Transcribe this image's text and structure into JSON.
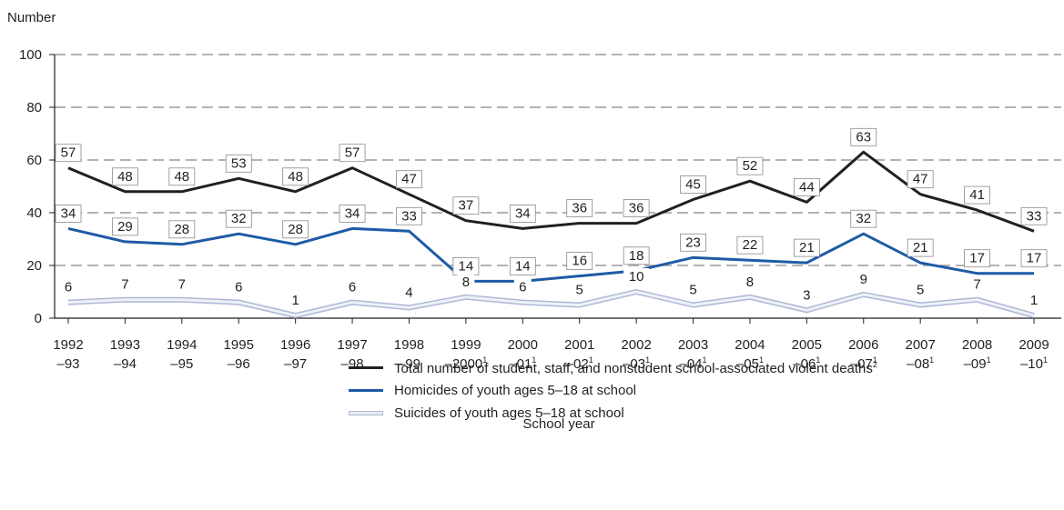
{
  "chart_data": {
    "type": "line",
    "ylabel": "Number",
    "xlabel": "School year",
    "ylim": [
      0,
      100
    ],
    "yticks": [
      0,
      20,
      40,
      60,
      80,
      100
    ],
    "grid": "dashed horizontal",
    "categories": [
      {
        "line1": "1992",
        "line2": "–93",
        "sup": ""
      },
      {
        "line1": "1993",
        "line2": "–94",
        "sup": ""
      },
      {
        "line1": "1994",
        "line2": "–95",
        "sup": ""
      },
      {
        "line1": "1995",
        "line2": "–96",
        "sup": ""
      },
      {
        "line1": "1996",
        "line2": "–97",
        "sup": ""
      },
      {
        "line1": "1997",
        "line2": "–98",
        "sup": ""
      },
      {
        "line1": "1998",
        "line2": "–99",
        "sup": ""
      },
      {
        "line1": "1999",
        "line2": "–2000",
        "sup": "1"
      },
      {
        "line1": "2000",
        "line2": "–01",
        "sup": "1"
      },
      {
        "line1": "2001",
        "line2": "–02",
        "sup": "1"
      },
      {
        "line1": "2002",
        "line2": "–03",
        "sup": "1"
      },
      {
        "line1": "2003",
        "line2": "–04",
        "sup": "1"
      },
      {
        "line1": "2004",
        "line2": "–05",
        "sup": "1"
      },
      {
        "line1": "2005",
        "line2": "–06",
        "sup": "1"
      },
      {
        "line1": "2006",
        "line2": "–07",
        "sup": "1"
      },
      {
        "line1": "2007",
        "line2": "–08",
        "sup": "1"
      },
      {
        "line1": "2008",
        "line2": "–09",
        "sup": "1"
      },
      {
        "line1": "2009",
        "line2": "–10",
        "sup": "1"
      }
    ],
    "series": [
      {
        "key": "total",
        "color": "#231f20",
        "values": [
          57,
          48,
          48,
          53,
          48,
          57,
          47,
          37,
          34,
          36,
          36,
          45,
          52,
          44,
          63,
          47,
          41,
          33
        ]
      },
      {
        "key": "homicide",
        "color": "#1f5aa6",
        "values": [
          34,
          29,
          28,
          32,
          28,
          34,
          33,
          14,
          14,
          16,
          18,
          23,
          22,
          21,
          32,
          21,
          17,
          17
        ]
      },
      {
        "key": "suicide",
        "color": "#aeb8d6",
        "values": [
          6,
          7,
          7,
          6,
          1,
          6,
          4,
          8,
          6,
          5,
          10,
          5,
          8,
          3,
          9,
          5,
          7,
          1
        ]
      }
    ]
  },
  "legend": {
    "total": "Total number of student, staff, and nonstudent school-associated violent deaths",
    "total_sup": "2",
    "homicide": "Homicides of youth ages 5–18 at school",
    "suicide": "Suicides of youth ages 5–18 at school"
  }
}
